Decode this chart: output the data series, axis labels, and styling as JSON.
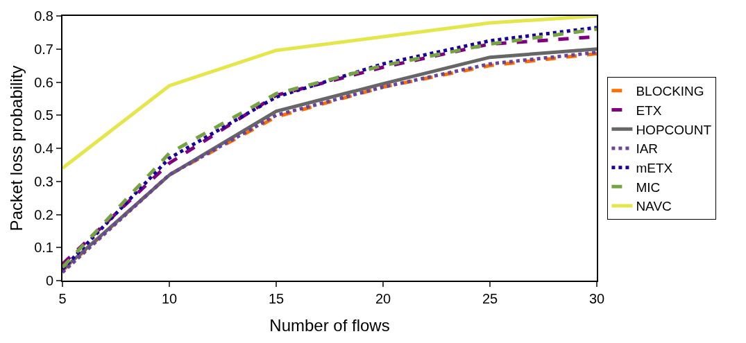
{
  "chart_data": {
    "type": "line",
    "xlabel": "Number of flows",
    "ylabel": "Packet loss probability",
    "x": [
      5,
      10,
      15,
      20,
      25,
      30
    ],
    "series": [
      {
        "name": "BLOCKING",
        "color": "#ff6f00",
        "line_style": "dashed",
        "values": [
          0.03,
          0.32,
          0.495,
          0.585,
          0.65,
          0.686
        ]
      },
      {
        "name": "ETX",
        "color": "#800080",
        "line_style": "dashed",
        "values": [
          0.05,
          0.355,
          0.56,
          0.645,
          0.715,
          0.737
        ]
      },
      {
        "name": "HOPCOUNT",
        "color": "#666666",
        "line_style": "solid",
        "values": [
          0.033,
          0.319,
          0.512,
          0.595,
          0.675,
          0.7
        ]
      },
      {
        "name": "IAR",
        "color": "#6a449a",
        "line_style": "dotted",
        "values": [
          0.025,
          0.32,
          0.5,
          0.585,
          0.655,
          0.69
        ]
      },
      {
        "name": "mETX",
        "color": "#1a0099",
        "line_style": "dotted",
        "values": [
          0.035,
          0.37,
          0.555,
          0.655,
          0.725,
          0.765
        ]
      },
      {
        "name": "MIC",
        "color": "#77a443",
        "line_style": "dashed",
        "values": [
          0.04,
          0.385,
          0.565,
          0.65,
          0.715,
          0.76
        ]
      },
      {
        "name": "NAVC",
        "color": "#e5e54c",
        "line_style": "solid",
        "values": [
          0.34,
          0.589,
          0.696,
          0.737,
          0.779,
          0.8
        ]
      }
    ],
    "xlim": [
      5,
      30
    ],
    "xticks": [
      5,
      10,
      15,
      20,
      25,
      30
    ],
    "ylim": [
      0,
      0.8
    ],
    "yticks": [
      0,
      0.1,
      0.2,
      0.3,
      0.4,
      0.5,
      0.6,
      0.7,
      0.8
    ],
    "legend": "right",
    "marker": "none"
  }
}
